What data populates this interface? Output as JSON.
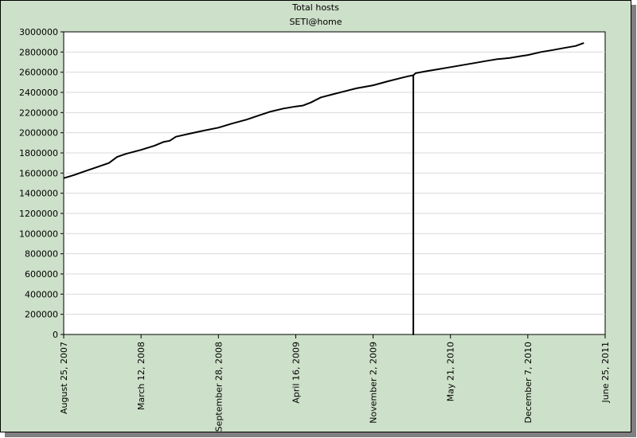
{
  "chart_data": {
    "type": "line",
    "title": "Total hosts",
    "subtitle": "SETI@home",
    "xlabel": "",
    "ylabel": "",
    "ylim": [
      0,
      3000000
    ],
    "y_ticks": [
      0,
      200000,
      400000,
      600000,
      800000,
      1000000,
      1200000,
      1400000,
      1600000,
      1800000,
      2000000,
      2200000,
      2400000,
      2600000,
      2800000,
      3000000
    ],
    "y_tick_labels": [
      "0",
      "200000",
      "400000",
      "600000",
      "800000",
      "1000000",
      "1200000",
      "1400000",
      "1600000",
      "1800000",
      "2000000",
      "2200000",
      "2400000",
      "2600000",
      "2800000",
      "3000000"
    ],
    "xlim": [
      "2007-08-25",
      "2011-06-25"
    ],
    "x_ticks": [
      "2007-08-25",
      "2008-03-12",
      "2008-09-28",
      "2009-04-16",
      "2009-11-02",
      "2010-05-21",
      "2010-12-07",
      "2011-06-25"
    ],
    "x_tick_labels": [
      "August 25, 2007",
      "March 12, 2008",
      "September 28, 2008",
      "April 16, 2009",
      "November 2, 2009",
      "May 21, 2010",
      "December 7, 2010",
      "June 25, 2011"
    ],
    "grid": true,
    "legend": "none",
    "series": [
      {
        "color": "#000000",
        "x": [
          "2007-08-25",
          "2007-09-20",
          "2007-10-20",
          "2007-11-20",
          "2007-12-20",
          "2008-01-10",
          "2008-02-01",
          "2008-03-12",
          "2008-04-15",
          "2008-05-10",
          "2008-05-25",
          "2008-06-10",
          "2008-07-15",
          "2008-08-20",
          "2008-09-28",
          "2008-11-01",
          "2008-12-10",
          "2009-01-10",
          "2009-02-10",
          "2009-03-15",
          "2009-04-16",
          "2009-05-05",
          "2009-05-25",
          "2009-06-20",
          "2009-07-20",
          "2009-08-20",
          "2009-09-20",
          "2009-11-02",
          "2009-12-10",
          "2010-01-10",
          "2010-02-01",
          "2010-02-14",
          "2010-02-14",
          "2010-02-14",
          "2010-02-14",
          "2010-02-20",
          "2010-03-20",
          "2010-04-20",
          "2010-05-21",
          "2010-06-20",
          "2010-07-20",
          "2010-08-20",
          "2010-09-20",
          "2010-10-20",
          "2010-11-20",
          "2010-12-07",
          "2011-01-10",
          "2011-02-10",
          "2011-03-10",
          "2011-04-10",
          "2011-05-01"
        ],
        "y": [
          1550000,
          1580000,
          1620000,
          1660000,
          1700000,
          1760000,
          1790000,
          1830000,
          1870000,
          1910000,
          1920000,
          1960000,
          1990000,
          2020000,
          2050000,
          2090000,
          2130000,
          2170000,
          2210000,
          2240000,
          2260000,
          2270000,
          2300000,
          2350000,
          2380000,
          2410000,
          2440000,
          2470000,
          2510000,
          2540000,
          2560000,
          2570000,
          0,
          1300000,
          2570000,
          2590000,
          2610000,
          2630000,
          2650000,
          2670000,
          2690000,
          2710000,
          2730000,
          2740000,
          2760000,
          2770000,
          2800000,
          2820000,
          2840000,
          2860000,
          2890000
        ]
      }
    ]
  }
}
